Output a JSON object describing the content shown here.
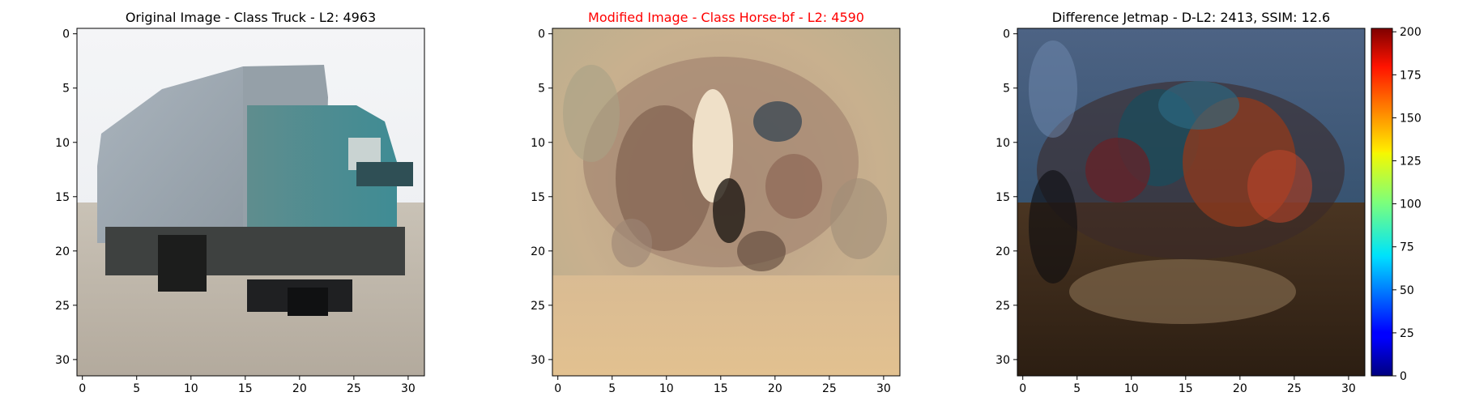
{
  "chart_data": [
    {
      "type": "heatmap",
      "title": "Original Image - Class Truck - L2: 4963",
      "title_color": "#000000",
      "xlim": [
        -0.5,
        31.5
      ],
      "ylim": [
        31.5,
        -0.5
      ],
      "xticks": [
        0,
        5,
        10,
        15,
        20,
        25,
        30
      ],
      "yticks": [
        0,
        5,
        10,
        15,
        20,
        25,
        30
      ]
    },
    {
      "type": "heatmap",
      "title": "Modified Image - Class Horse-bf - L2: 4590",
      "title_color": "#ff0000",
      "xlim": [
        -0.5,
        31.5
      ],
      "ylim": [
        31.5,
        -0.5
      ],
      "xticks": [
        0,
        5,
        10,
        15,
        20,
        25,
        30
      ],
      "yticks": [
        0,
        5,
        10,
        15,
        20,
        25,
        30
      ]
    },
    {
      "type": "heatmap",
      "title": "Difference Jetmap - D-L2: 2413, SSIM: 12.6",
      "title_color": "#000000",
      "xlim": [
        -0.5,
        31.5
      ],
      "ylim": [
        31.5,
        -0.5
      ],
      "xticks": [
        0,
        5,
        10,
        15,
        20,
        25,
        30
      ],
      "yticks": [
        0,
        5,
        10,
        15,
        20,
        25,
        30
      ],
      "colorbar": {
        "colormap": "jet",
        "range": [
          0,
          202
        ],
        "ticks": [
          0,
          25,
          50,
          75,
          100,
          125,
          150,
          175,
          200
        ]
      }
    }
  ]
}
